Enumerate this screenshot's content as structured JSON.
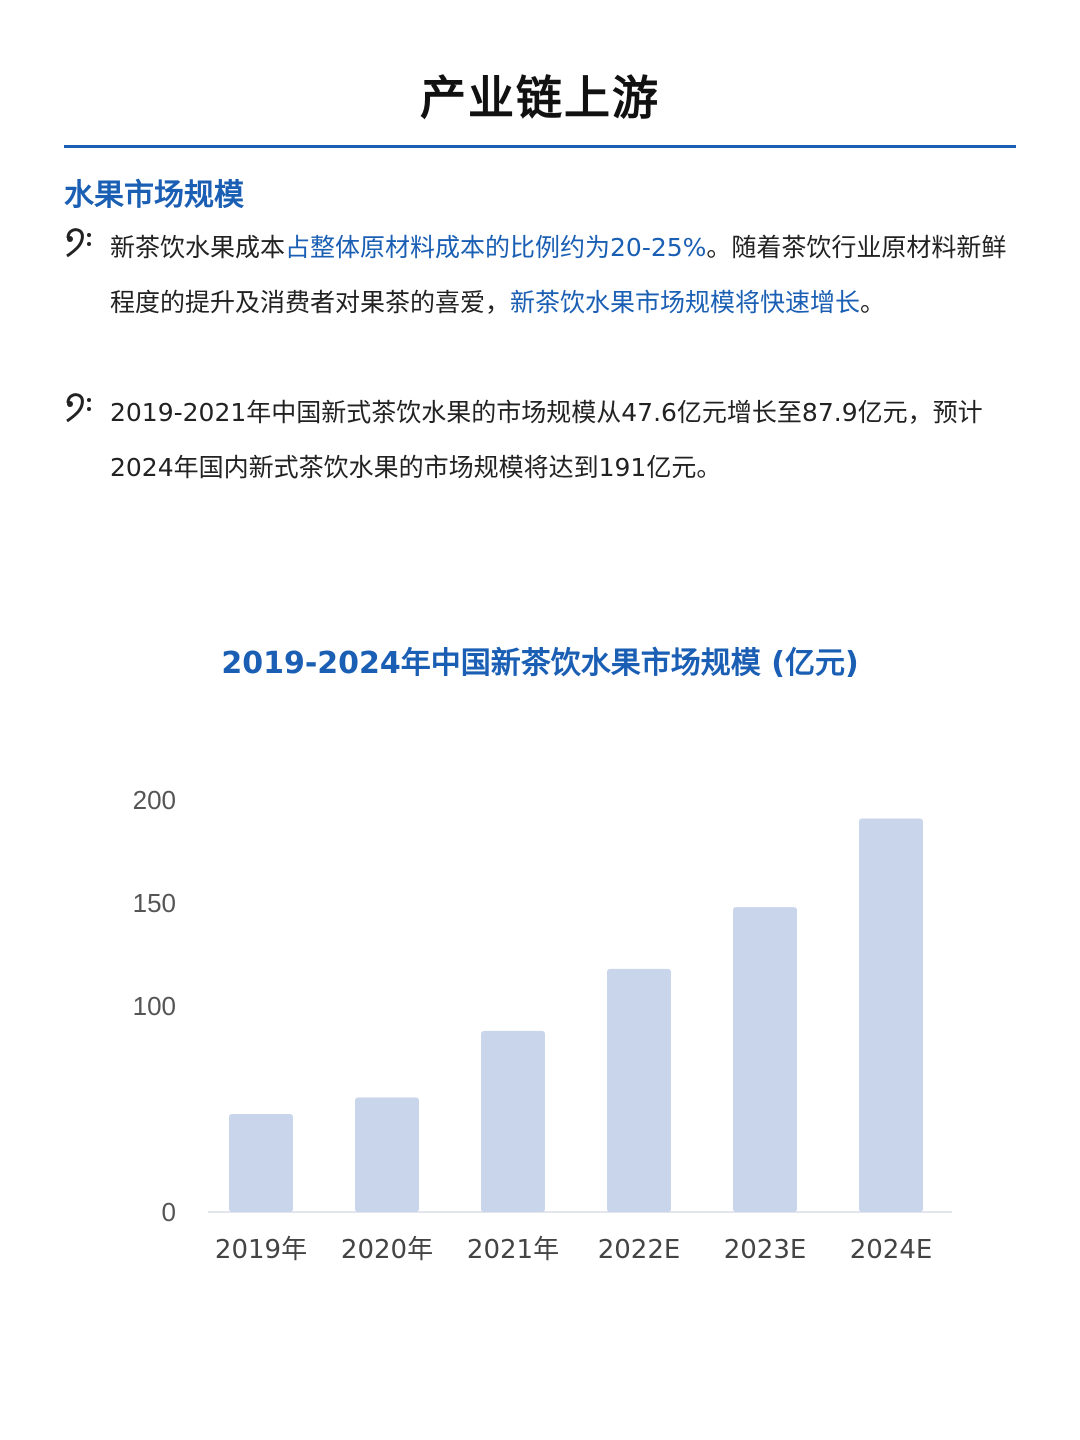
{
  "page": {
    "title": "产业链上游",
    "section_heading": "水果市场规模"
  },
  "bullets": [
    {
      "icon": "bass-clef-icon",
      "segments": [
        {
          "text": "新茶饮水果成本",
          "highlight": false
        },
        {
          "text": "占整体原材料成本的比例约为20-25%",
          "highlight": true
        },
        {
          "text": "。随着茶饮行业原材料新鲜程度的提升及消费者对果茶的喜爱，",
          "highlight": false
        },
        {
          "text": "新茶饮水果市场规模将快速增长",
          "highlight": true
        },
        {
          "text": "。",
          "highlight": false
        }
      ]
    },
    {
      "icon": "bass-clef-icon",
      "segments": [
        {
          "text": "2019-2021年中国新式茶饮水果的市场规模从47.6亿元增长至87.9亿元，预计2024年国内新式茶饮水果的市场规模将达到191亿元。",
          "highlight": false
        }
      ]
    }
  ],
  "colors": {
    "accent": "#1a5fb4",
    "bar": "#c9d5ea"
  },
  "chart_data": {
    "type": "bar",
    "title": "2019-2024年中国新茶饮水果市场规模 (亿元)",
    "categories": [
      "2019年",
      "2020年",
      "2021年",
      "2022E",
      "2023E",
      "2024E"
    ],
    "values": [
      47.6,
      55.6,
      87.9,
      118,
      148,
      191
    ],
    "yticks": [
      "0",
      "100",
      "150",
      "200"
    ],
    "ylim": [
      0,
      200
    ],
    "xlabel": "",
    "ylabel": "",
    "grid": false,
    "legend": "none"
  }
}
